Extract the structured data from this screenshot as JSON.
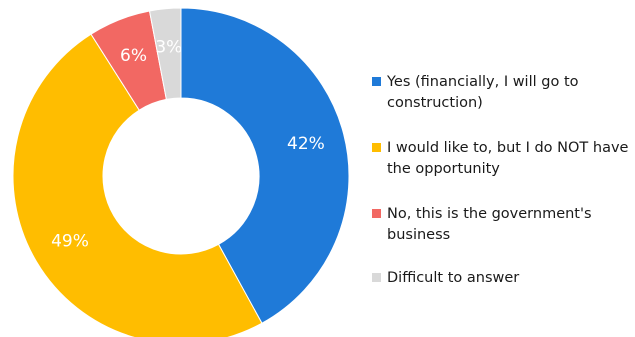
{
  "chart_data": {
    "type": "pie",
    "donut": true,
    "categories": [
      "Yes (financially, I will go to construction)",
      "I would like to, but I do NOT have the opportunity",
      "No, this is the government's business",
      "Difficult to answer"
    ],
    "values": [
      42,
      49,
      6,
      3
    ],
    "value_labels": [
      "42%",
      "49%",
      "6%",
      "3%"
    ],
    "colors": [
      "#1f7ad8",
      "#ffbd00",
      "#f26863",
      "#d9d9d9"
    ],
    "legend_position": "right",
    "title": ""
  }
}
